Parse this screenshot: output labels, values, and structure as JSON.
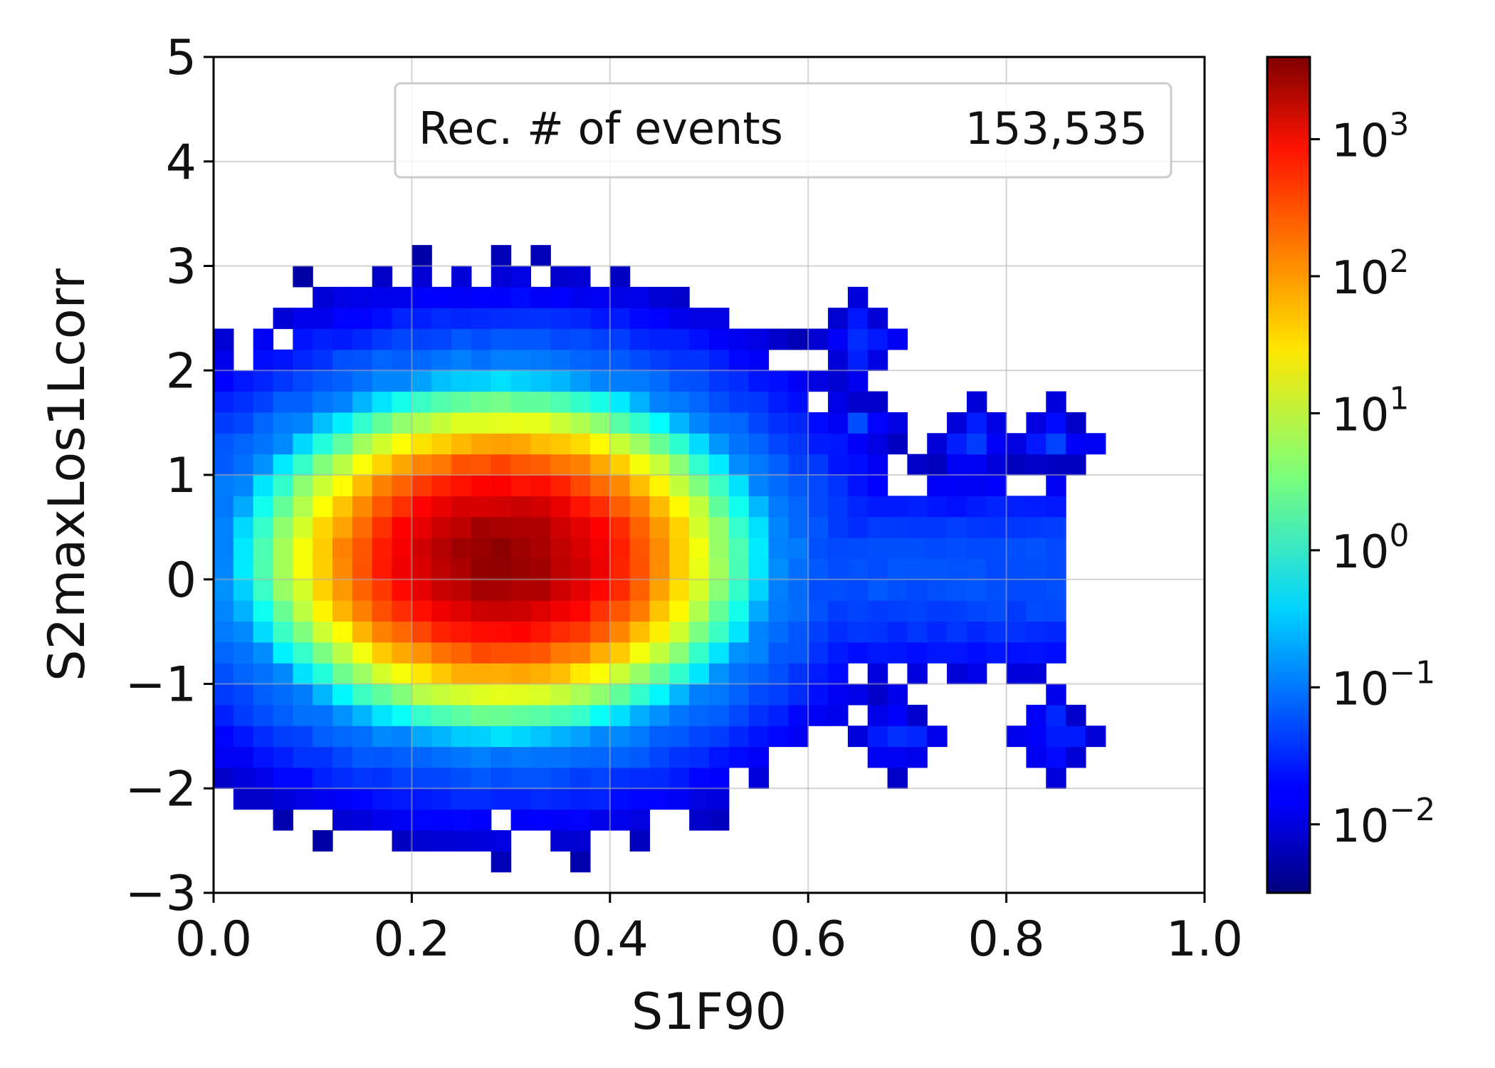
{
  "chart_data": {
    "type": "heatmap",
    "xlabel": "S1F90",
    "ylabel": "S2maxLos1Lcorr",
    "xlim": [
      0.0,
      1.0
    ],
    "ylim": [
      -3,
      5
    ],
    "xticks": [
      "0.0",
      "0.2",
      "0.4",
      "0.6",
      "0.8",
      "1.0"
    ],
    "yticks": [
      "−3",
      "−2",
      "−1",
      "0",
      "1",
      "2",
      "3",
      "4",
      "5"
    ],
    "grid": true,
    "colormap": "jet",
    "colorbar": {
      "scale": "log",
      "range_log10": [
        -2.5,
        3.6
      ],
      "tick_exponents": [
        -2,
        -1,
        0,
        1,
        2,
        3
      ]
    },
    "annotation": {
      "label": "Rec. # of events",
      "value": "153,535",
      "placement": "top-right"
    },
    "distribution": {
      "core_center": {
        "x": 0.29,
        "y": 0.2
      },
      "core_peak_count": 3000,
      "approx_extent": {
        "x": [
          0.0,
          0.9
        ],
        "y": [
          -2.8,
          3.85
        ]
      },
      "isolated_clusters": [
        {
          "x": 0.65,
          "y": 2.35
        },
        {
          "x": 0.65,
          "y": 1.45
        },
        {
          "x": 0.77,
          "y": 1.35
        },
        {
          "x": 0.85,
          "y": 1.25
        },
        {
          "x": 0.85,
          "y": -1.45
        },
        {
          "x": 0.7,
          "y": -1.5
        }
      ]
    }
  }
}
